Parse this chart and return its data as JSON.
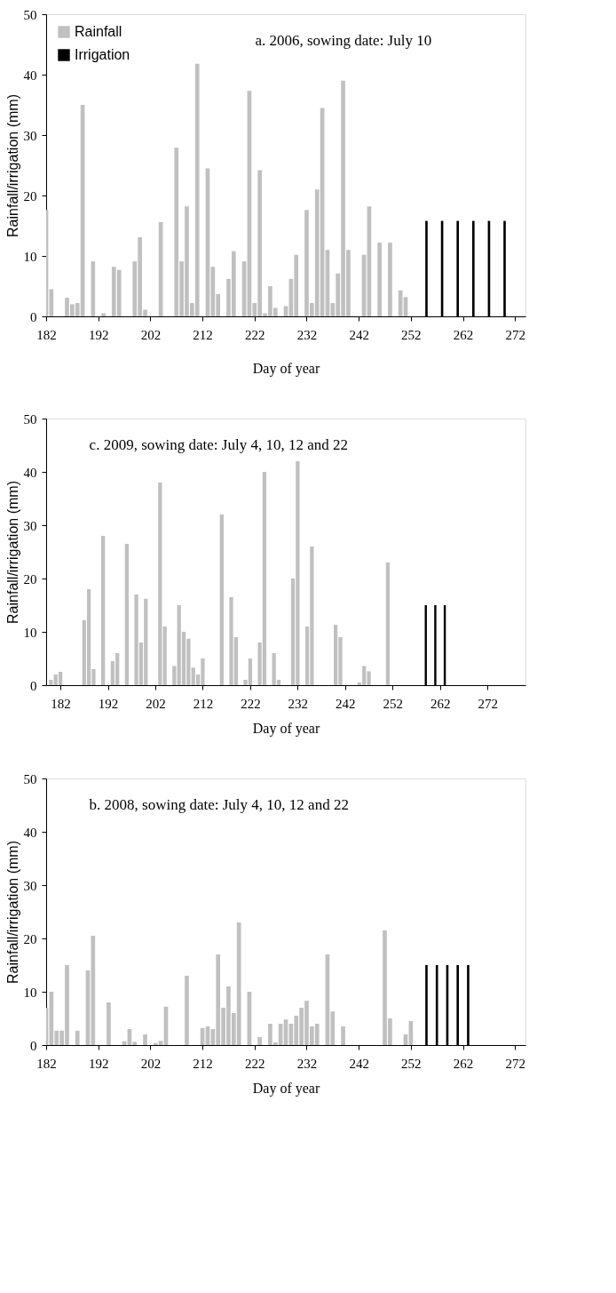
{
  "chart_data": [
    {
      "type": "bar",
      "xlabel": "Day of year",
      "ylabel": "Rainfall/irrigation (mm)",
      "annotations": [
        "a. 2006, sowing date: July 10"
      ],
      "xlim": [
        182,
        274
      ],
      "xticks": [
        182,
        192,
        202,
        212,
        222,
        232,
        242,
        252,
        262,
        272
      ],
      "ylim": [
        0,
        50
      ],
      "yticks": [
        0,
        10,
        20,
        30,
        40,
        50
      ],
      "grid": false,
      "legend": "top left",
      "series": [
        {
          "name": "Rainfall",
          "color": "#c0c0c0",
          "x": [
            182,
            183,
            186,
            187,
            188,
            189,
            191,
            193,
            195,
            196,
            199,
            200,
            201,
            204,
            207,
            208,
            209,
            210,
            211,
            213,
            214,
            215,
            217,
            218,
            220,
            221,
            222,
            223,
            224,
            225,
            226,
            228,
            229,
            230,
            232,
            233,
            234,
            235,
            236,
            237,
            238,
            239,
            240,
            243,
            244,
            246,
            248,
            250,
            251
          ],
          "values": [
            17.6,
            4.5,
            3.1,
            2.0,
            2.2,
            35.0,
            9.1,
            0.5,
            8.2,
            7.7,
            9.1,
            13.1,
            1.1,
            15.6,
            27.9,
            9.1,
            18.2,
            2.2,
            41.8,
            24.5,
            8.2,
            3.7,
            6.2,
            10.8,
            9.1,
            37.3,
            2.2,
            24.2,
            0.5,
            5.0,
            1.4,
            1.7,
            6.2,
            10.2,
            17.6,
            2.2,
            21.0,
            34.5,
            11.0,
            2.2,
            7.1,
            39.0,
            11.0,
            10.2,
            18.2,
            12.2,
            12.2,
            4.3,
            3.2
          ]
        },
        {
          "name": "Irrigation",
          "color": "#000000",
          "x": [
            255,
            258,
            261,
            264,
            267,
            270
          ],
          "values": [
            15.8,
            15.8,
            15.8,
            15.8,
            15.8,
            15.8
          ]
        }
      ]
    },
    {
      "type": "bar",
      "xlabel": "Day of year",
      "ylabel": "Rainfall/irrigation (mm)",
      "annotations": [
        "c. 2009, sowing date: July 4, 10, 12 and 22"
      ],
      "xlim": [
        179,
        280
      ],
      "xticks": [
        182,
        192,
        202,
        212,
        222,
        232,
        242,
        252,
        262,
        272
      ],
      "ylim": [
        0,
        50
      ],
      "yticks": [
        0,
        10,
        20,
        30,
        40,
        50
      ],
      "grid": false,
      "series": [
        {
          "color": "#c0c0c0",
          "x": [
            180,
            181,
            182,
            187,
            188,
            189,
            191,
            193,
            194,
            196,
            198,
            199,
            200,
            203,
            204,
            206,
            207,
            208,
            209,
            210,
            211,
            212,
            216,
            218,
            219,
            221,
            222,
            224,
            225,
            227,
            228,
            231,
            232,
            234,
            235,
            240,
            241,
            245,
            246,
            247,
            251
          ],
          "values": [
            1.0,
            2.0,
            2.5,
            12.2,
            18.0,
            3.0,
            28.0,
            4.5,
            6.0,
            26.5,
            17.0,
            8.0,
            16.2,
            38.0,
            11.0,
            3.6,
            15.0,
            10.0,
            8.7,
            3.3,
            2.0,
            5.0,
            32.0,
            16.5,
            9.0,
            1.0,
            5.0,
            8.0,
            40.0,
            6.0,
            1.0,
            20.0,
            42.0,
            11.0,
            26.0,
            11.3,
            9.0,
            0.5,
            3.6,
            2.6,
            23.0
          ]
        },
        {
          "color": "#000000",
          "x": [
            259,
            261,
            263
          ],
          "values": [
            15,
            15,
            15
          ]
        }
      ]
    },
    {
      "type": "bar",
      "xlabel": "Day of year",
      "ylabel": "Rainfall/irrigation (mm)",
      "annotations": [
        "b. 2008, sowing date: July 4, 10, 12 and 22"
      ],
      "xlim": [
        182,
        274
      ],
      "xticks": [
        182,
        192,
        202,
        212,
        222,
        232,
        242,
        252,
        262,
        272
      ],
      "ylim": [
        0,
        50
      ],
      "yticks": [
        0,
        10,
        20,
        30,
        40,
        50
      ],
      "grid": false,
      "series": [
        {
          "color": "#c0c0c0",
          "x": [
            182,
            183,
            184,
            185,
            186,
            188,
            190,
            191,
            194,
            197,
            198,
            199,
            201,
            203,
            204,
            205,
            209,
            212,
            213,
            214,
            215,
            216,
            217,
            218,
            219,
            221,
            223,
            225,
            226,
            227,
            228,
            229,
            230,
            231,
            232,
            233,
            234,
            236,
            237,
            239,
            247,
            248,
            251,
            252
          ],
          "values": [
            7.0,
            10.0,
            2.7,
            2.7,
            15.0,
            2.7,
            14.0,
            20.5,
            8.0,
            0.7,
            3.0,
            0.6,
            2.0,
            0.4,
            0.8,
            7.2,
            13.0,
            3.2,
            3.5,
            3.0,
            17.0,
            7.0,
            11.0,
            6.0,
            23.0,
            10.0,
            1.5,
            4.0,
            0.5,
            4.0,
            4.8,
            4.0,
            5.5,
            7.0,
            8.3,
            3.5,
            4.0,
            17.0,
            6.3,
            3.5,
            21.5,
            5.0,
            2.0,
            4.5
          ]
        },
        {
          "color": "#000000",
          "x": [
            255,
            257,
            259,
            261,
            263
          ],
          "values": [
            15,
            15,
            15,
            15,
            15
          ]
        }
      ]
    }
  ]
}
